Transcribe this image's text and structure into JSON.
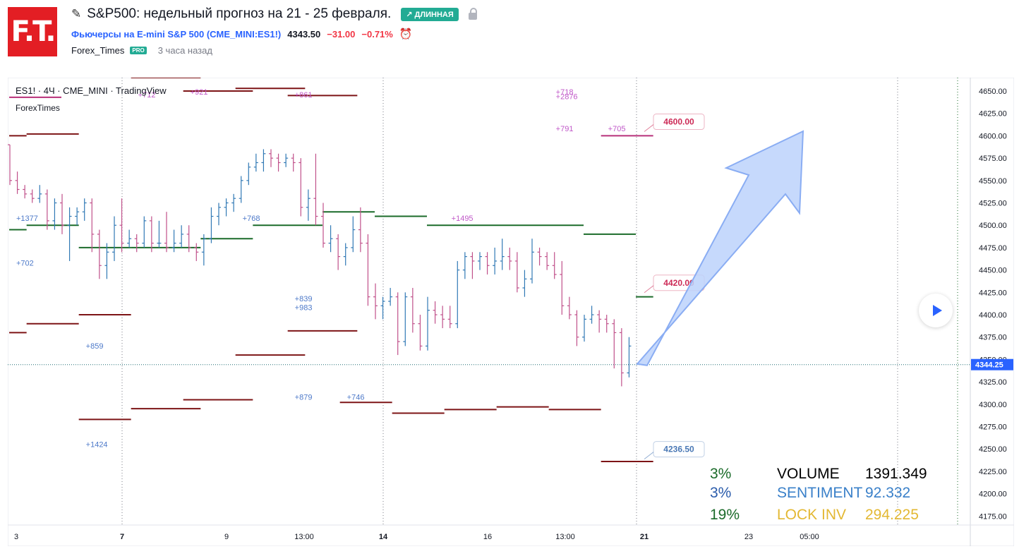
{
  "header": {
    "logo_text": "F.T.",
    "idea_icon": "idea-pencil-icon",
    "title": "S&P500: недельный прогноз на 21 - 25 февраля.",
    "badge": "↗ ДЛИННАЯ",
    "lock_icon": "lock-icon",
    "symbol_name": "Фьючерсы на E-mini S&P 500",
    "symbol_code": "(CME_MINI:ES1!)",
    "price": "4343.50",
    "change": "−31.00",
    "change_pct": "−0.71%",
    "alarm_icon": "alarm-clock-icon",
    "author": "Forex_Times",
    "author_badge": "PRO",
    "time_ago": "3 часа назад"
  },
  "colors": {
    "accent": "#2962ff",
    "long_badge": "#22ab94",
    "negative": "#f23645",
    "bar_up": "#3179b5",
    "bar_down": "#c0508a",
    "level_green": "#1b6b2a",
    "level_red": "#7d1416",
    "arrow_fill": "#bcd2fb",
    "arrow_stroke": "#8aadf3"
  },
  "chart_data": {
    "type": "ohlc-bar",
    "legend_line1": "ES1!  ·  4Ч  ·  CME_MINI  ·  TradingView",
    "legend_line2": "ForexTimes",
    "price_axis": {
      "min": 4175,
      "max": 4650,
      "ticks": [
        4650,
        4625,
        4600,
        4575,
        4550,
        4525,
        4500,
        4475,
        4450,
        4425,
        4400,
        4375,
        4350,
        4325,
        4300,
        4275,
        4250,
        4225,
        4200,
        4175
      ],
      "tick_labels": [
        "4650.00",
        "4625.00",
        "4600.00",
        "4575.00",
        "4550.00",
        "4525.00",
        "4500.00",
        "4475.00",
        "4450.00",
        "4425.00",
        "4400.00",
        "4375.00",
        "4350.00",
        "4325.00",
        "4300.00",
        "4275.00",
        "4250.00",
        "4225.00",
        "4200.00",
        "4175.00"
      ],
      "current_price": 4344.25,
      "current_price_label": "4344.25"
    },
    "time_labels": [
      "3",
      "7",
      "9",
      "13:00",
      "14",
      "16",
      "13:00",
      "21",
      "23",
      "05:00"
    ],
    "session_dividers": [
      "7",
      "14",
      "21"
    ],
    "bars": [
      [
        4590,
        4590,
        4545,
        4550
      ],
      [
        4550,
        4560,
        4535,
        4540
      ],
      [
        4540,
        4545,
        4530,
        4535
      ],
      [
        4535,
        4540,
        4525,
        4530
      ],
      [
        4530,
        4545,
        4525,
        4535
      ],
      [
        4535,
        4540,
        4495,
        4505
      ],
      [
        4505,
        4530,
        4495,
        4525
      ],
      [
        4525,
        4535,
        4490,
        4500
      ],
      [
        4500,
        4520,
        4460,
        4510
      ],
      [
        4510,
        4520,
        4500,
        4515
      ],
      [
        4515,
        4530,
        4505,
        4525
      ],
      [
        4525,
        4530,
        4470,
        4490
      ],
      [
        4490,
        4495,
        4440,
        4455
      ],
      [
        4455,
        4480,
        4440,
        4470
      ],
      [
        4470,
        4510,
        4460,
        4500
      ],
      [
        4500,
        4530,
        4470,
        4480
      ],
      [
        4480,
        4495,
        4475,
        4485
      ],
      [
        4485,
        4490,
        4470,
        4480
      ],
      [
        4480,
        4510,
        4475,
        4505
      ],
      [
        4505,
        4510,
        4470,
        4480
      ],
      [
        4480,
        4505,
        4475,
        4480
      ],
      [
        4480,
        4515,
        4470,
        4475
      ],
      [
        4475,
        4495,
        4470,
        4480
      ],
      [
        4480,
        4500,
        4475,
        4490
      ],
      [
        4490,
        4500,
        4470,
        4475
      ],
      [
        4475,
        4480,
        4460,
        4470
      ],
      [
        4470,
        4490,
        4455,
        4485
      ],
      [
        4485,
        4520,
        4480,
        4510
      ],
      [
        4510,
        4525,
        4500,
        4520
      ],
      [
        4520,
        4530,
        4510,
        4525
      ],
      [
        4525,
        4535,
        4515,
        4530
      ],
      [
        4530,
        4555,
        4525,
        4550
      ],
      [
        4550,
        4570,
        4545,
        4565
      ],
      [
        4565,
        4580,
        4560,
        4570
      ],
      [
        4570,
        4585,
        4560,
        4580
      ],
      [
        4580,
        4585,
        4565,
        4575
      ],
      [
        4575,
        4580,
        4560,
        4570
      ],
      [
        4570,
        4580,
        4565,
        4575
      ],
      [
        4575,
        4580,
        4560,
        4570
      ],
      [
        4570,
        4575,
        4510,
        4520
      ],
      [
        4520,
        4540,
        4505,
        4530
      ],
      [
        4530,
        4580,
        4500,
        4510
      ],
      [
        4510,
        4525,
        4475,
        4480
      ],
      [
        4480,
        4500,
        4470,
        4485
      ],
      [
        4485,
        4490,
        4450,
        4465
      ],
      [
        4465,
        4480,
        4455,
        4475
      ],
      [
        4475,
        4510,
        4470,
        4495
      ],
      [
        4495,
        4520,
        4470,
        4480
      ],
      [
        4480,
        4490,
        4410,
        4420
      ],
      [
        4420,
        4435,
        4395,
        4410
      ],
      [
        4410,
        4420,
        4395,
        4415
      ],
      [
        4415,
        4430,
        4410,
        4420
      ],
      [
        4420,
        4425,
        4355,
        4370
      ],
      [
        4370,
        4425,
        4365,
        4420
      ],
      [
        4420,
        4430,
        4380,
        4390
      ],
      [
        4390,
        4400,
        4360,
        4365
      ],
      [
        4365,
        4420,
        4360,
        4405
      ],
      [
        4405,
        4415,
        4390,
        4400
      ],
      [
        4400,
        4410,
        4385,
        4395
      ],
      [
        4395,
        4410,
        4385,
        4390
      ],
      [
        4390,
        4460,
        4385,
        4450
      ],
      [
        4450,
        4470,
        4440,
        4465
      ],
      [
        4465,
        4470,
        4440,
        4460
      ],
      [
        4460,
        4470,
        4450,
        4465
      ],
      [
        4465,
        4470,
        4445,
        4455
      ],
      [
        4455,
        4475,
        4445,
        4460
      ],
      [
        4460,
        4485,
        4450,
        4465
      ],
      [
        4465,
        4475,
        4450,
        4460
      ],
      [
        4460,
        4470,
        4425,
        4430
      ],
      [
        4430,
        4450,
        4420,
        4440
      ],
      [
        4440,
        4485,
        4435,
        4470
      ],
      [
        4470,
        4475,
        4455,
        4465
      ],
      [
        4465,
        4470,
        4450,
        4455
      ],
      [
        4455,
        4470,
        4440,
        4445
      ],
      [
        4445,
        4460,
        4400,
        4410
      ],
      [
        4410,
        4420,
        4395,
        4400
      ],
      [
        4400,
        4405,
        4365,
        4375
      ],
      [
        4375,
        4400,
        4370,
        4395
      ],
      [
        4395,
        4410,
        4390,
        4400
      ],
      [
        4400,
        4405,
        4380,
        4395
      ],
      [
        4395,
        4400,
        4380,
        4390
      ],
      [
        4390,
        4395,
        4340,
        4380
      ],
      [
        4380,
        4385,
        4320,
        4335
      ],
      [
        4335,
        4375,
        4330,
        4365
      ]
    ],
    "levels_green": [
      {
        "from": 0,
        "to": 1,
        "price": 4495
      },
      {
        "from": 1,
        "to": 4,
        "price": 4500
      },
      {
        "from": 4,
        "to": 7,
        "price": 4475
      },
      {
        "from": 7,
        "to": 11,
        "price": 4475
      },
      {
        "from": 11,
        "to": 14,
        "price": 4485
      },
      {
        "from": 14,
        "to": 18,
        "price": 4500
      },
      {
        "from": 18,
        "to": 21,
        "price": 4515
      },
      {
        "from": 21,
        "to": 24,
        "price": 4510
      },
      {
        "from": 24,
        "to": 33,
        "price": 4500
      },
      {
        "from": 33,
        "to": 36,
        "price": 4490
      },
      {
        "from": 36,
        "to": 37,
        "price": 4420
      }
    ],
    "levels_red": [
      {
        "from": 0,
        "to": 1,
        "price": 4600
      },
      {
        "from": 1,
        "to": 4,
        "price": 4602
      },
      {
        "from": 4,
        "to": 7,
        "price": 4400
      },
      {
        "from": 0,
        "to": 1,
        "price": 4380
      },
      {
        "from": 1,
        "to": 4,
        "price": 4390
      },
      {
        "from": 4,
        "to": 7,
        "price": 4283
      },
      {
        "from": 7,
        "to": 11,
        "price": 4295
      },
      {
        "from": 7,
        "to": 11,
        "price": 4665
      },
      {
        "from": 10,
        "to": 14,
        "price": 4305
      },
      {
        "from": 10,
        "to": 14,
        "price": 4650
      },
      {
        "from": 13,
        "to": 17,
        "price": 4355
      },
      {
        "from": 13,
        "to": 17,
        "price": 4653
      },
      {
        "from": 16,
        "to": 20,
        "price": 4382
      },
      {
        "from": 16,
        "to": 20,
        "price": 4645
      },
      {
        "from": 19,
        "to": 22,
        "price": 4302
      },
      {
        "from": 22,
        "to": 25,
        "price": 4290
      },
      {
        "from": 25,
        "to": 28,
        "price": 4294
      },
      {
        "from": 28,
        "to": 31,
        "price": 4297
      },
      {
        "from": 31,
        "to": 34,
        "price": 4294
      },
      {
        "from": 34,
        "to": 37,
        "price": 4236
      }
    ],
    "level_magenta": [
      {
        "from": 0,
        "to": 3,
        "price": 4643
      },
      {
        "from": 34,
        "to": 37,
        "price": 4600
      }
    ],
    "volume_labels": [
      {
        "text": "+712",
        "col": 7,
        "price": 4643,
        "series": "magenta"
      },
      {
        "text": "+921",
        "col": 10,
        "price": 4646,
        "series": "magenta"
      },
      {
        "text": "+861",
        "col": 16,
        "price": 4643,
        "series": "magenta"
      },
      {
        "text": "+718",
        "col": 31,
        "price": 4646,
        "series": "magenta"
      },
      {
        "text": "+2876",
        "col": 31,
        "price": 4641,
        "series": "magenta"
      },
      {
        "text": "+791",
        "col": 31,
        "price": 4605,
        "series": "magenta"
      },
      {
        "text": "+705",
        "col": 34,
        "price": 4605,
        "series": "magenta"
      },
      {
        "text": "+1495",
        "col": 25,
        "price": 4505,
        "series": "magenta"
      },
      {
        "text": "+1377",
        "col": 0,
        "price": 4505,
        "series": "blue"
      },
      {
        "text": "+768",
        "col": 13,
        "price": 4505,
        "series": "blue"
      },
      {
        "text": "+702",
        "col": 0,
        "price": 4455,
        "series": "blue"
      },
      {
        "text": "+839",
        "col": 16,
        "price": 4415,
        "series": "blue"
      },
      {
        "text": "+983",
        "col": 16,
        "price": 4405,
        "series": "blue"
      },
      {
        "text": "+859",
        "col": 4,
        "price": 4362,
        "series": "blue"
      },
      {
        "text": "+879",
        "col": 16,
        "price": 4305,
        "series": "blue"
      },
      {
        "text": "+746",
        "col": 19,
        "price": 4305,
        "series": "blue"
      },
      {
        "text": "+1424",
        "col": 4,
        "price": 4252,
        "series": "blue"
      }
    ],
    "target_labels": [
      {
        "text": "4600.00",
        "price": 4622,
        "color": "#cc2a56"
      },
      {
        "text": "4420.00",
        "price": 4442,
        "color": "#cc2a56"
      },
      {
        "text": "4236.50",
        "price": 4256,
        "color": "#4a78b5"
      }
    ],
    "arrow": {
      "from_price": 4345,
      "to_price": 4608
    },
    "stats": [
      {
        "pct": "3%",
        "label": "VOLUME",
        "value": "1391.349",
        "pct_color": "#1b6b2a",
        "label_color": "#000000"
      },
      {
        "pct": "3%",
        "label": "SENTIMENT",
        "value": "92.332",
        "pct_color": "#2b5cab",
        "label_color": "#3a80c9"
      },
      {
        "pct": "19%",
        "label": "LOCK INV",
        "value": "294.225",
        "pct_color": "#1b6b2a",
        "label_color": "#e3b833"
      }
    ]
  }
}
